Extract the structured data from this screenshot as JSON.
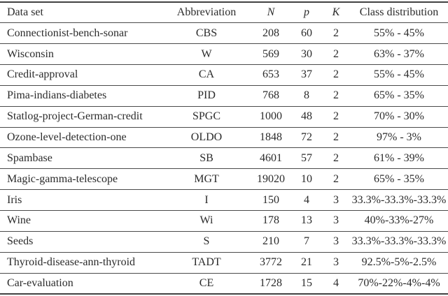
{
  "table": {
    "headers": {
      "dataset": "Data set",
      "abbreviation": "Abbreviation",
      "n": "N",
      "p": "p",
      "k": "K",
      "class_distribution": "Class distribution"
    },
    "rows": [
      [
        "Connectionist-bench-sonar",
        "CBS",
        "208",
        "60",
        "2",
        "55% - 45%"
      ],
      [
        "Wisconsin",
        "W",
        "569",
        "30",
        "2",
        "63% - 37%"
      ],
      [
        "Credit-approval",
        "CA",
        "653",
        "37",
        "2",
        "55% - 45%"
      ],
      [
        "Pima-indians-diabetes",
        "PID",
        "768",
        "8",
        "2",
        "65% - 35%"
      ],
      [
        "Statlog-project-German-credit",
        "SPGC",
        "1000",
        "48",
        "2",
        "70% - 30%"
      ],
      [
        "Ozone-level-detection-one",
        "OLDO",
        "1848",
        "72",
        "2",
        "97% - 3%"
      ],
      [
        "Spambase",
        "SB",
        "4601",
        "57",
        "2",
        "61% - 39%"
      ],
      [
        "Magic-gamma-telescope",
        "MGT",
        "19020",
        "10",
        "2",
        "65% - 35%"
      ],
      [
        "Iris",
        "I",
        "150",
        "4",
        "3",
        "33.3%-33.3%-33.3%"
      ],
      [
        "Wine",
        "Wi",
        "178",
        "13",
        "3",
        "40%-33%-27%"
      ],
      [
        "Seeds",
        "S",
        "210",
        "7",
        "3",
        "33.3%-33.3%-33.3%"
      ],
      [
        "Thyroid-disease-ann-thyroid",
        "TADT",
        "3772",
        "21",
        "3",
        "92.5%-5%-2.5%"
      ],
      [
        "Car-evaluation",
        "CE",
        "1728",
        "15",
        "4",
        "70%-22%-4%-4%"
      ]
    ],
    "colors": {
      "text": "#2b2b2b",
      "rule": "#4a4a4a",
      "background": "#ffffff"
    }
  }
}
